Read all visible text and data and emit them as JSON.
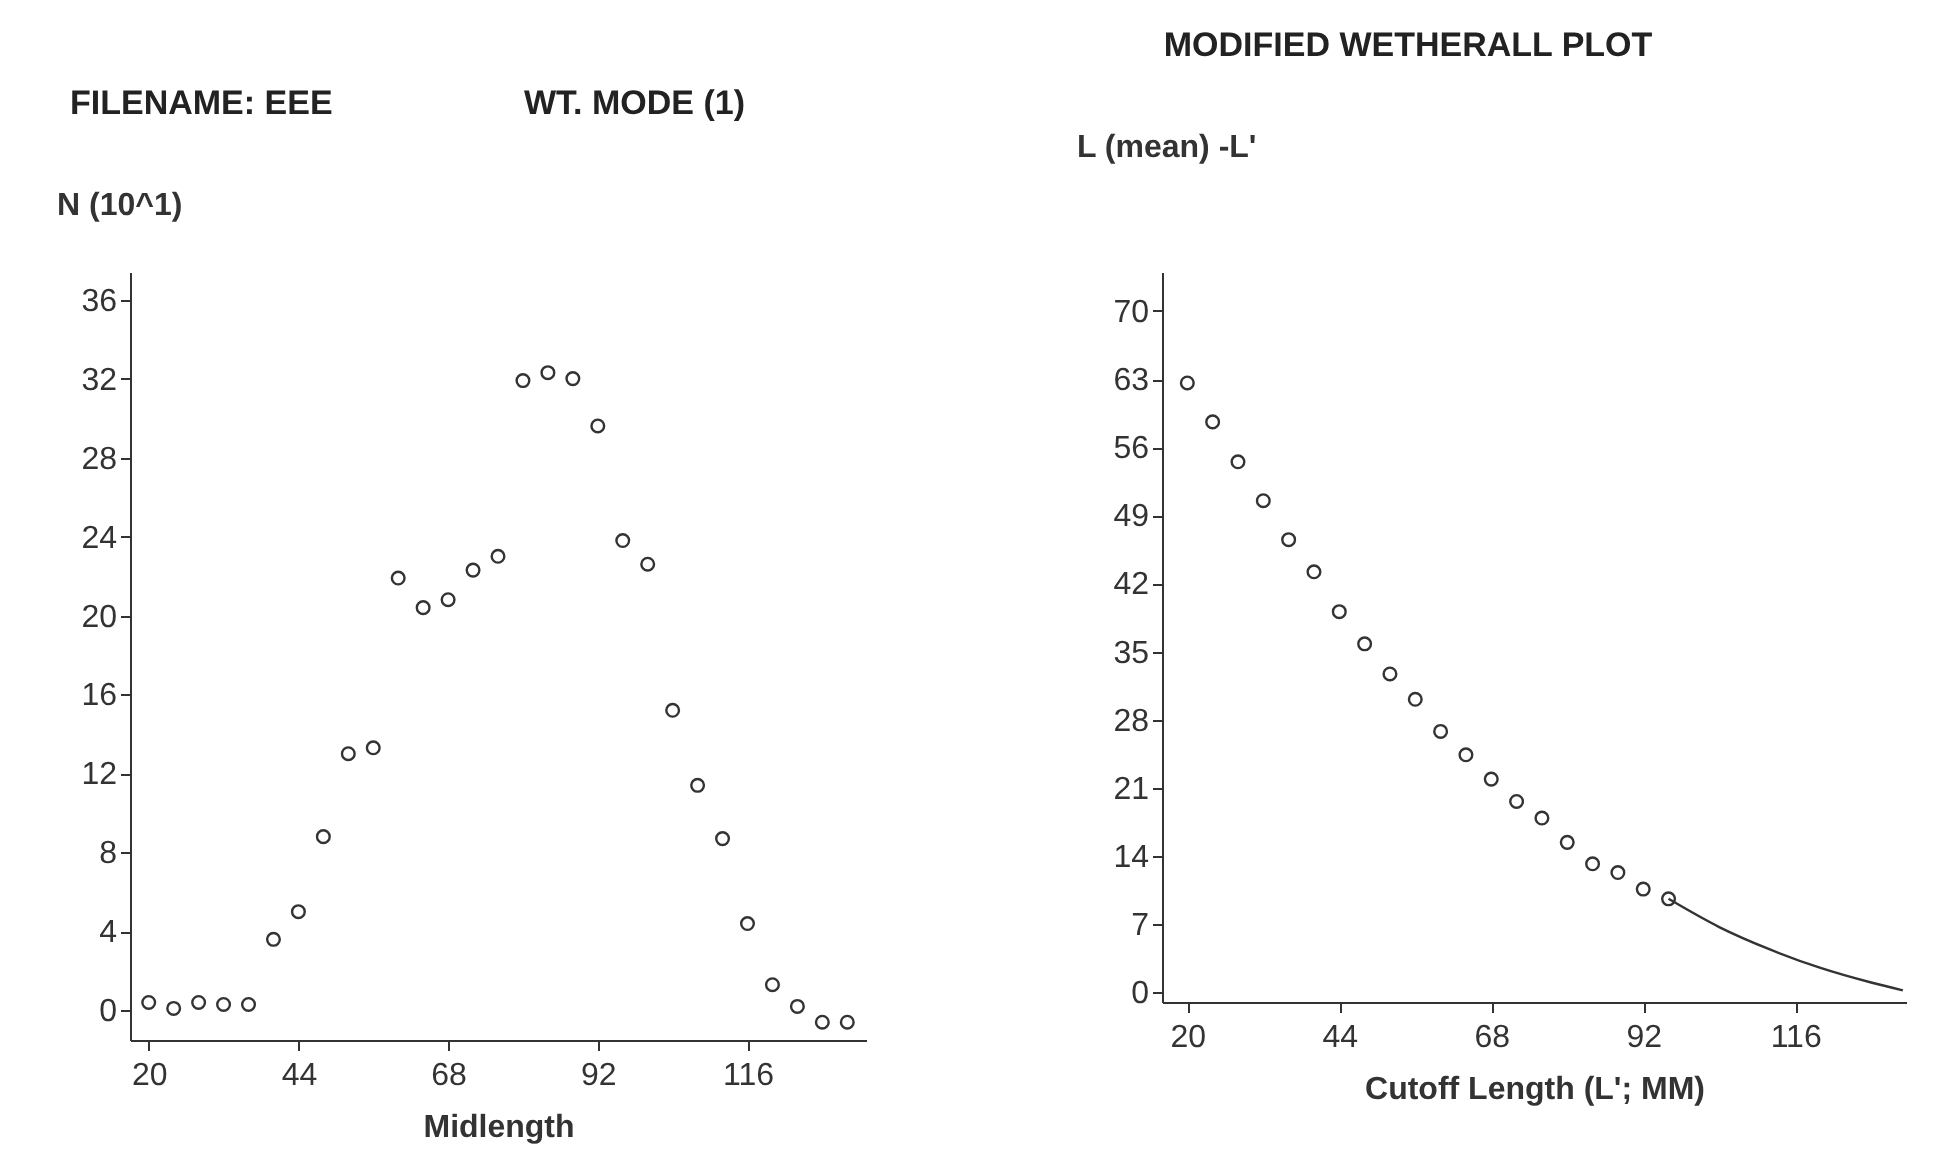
{
  "chart_data": [
    {
      "type": "scatter",
      "title": "FILENAME: EEE",
      "subtitle": "WT. MODE (1)",
      "xlabel": "Midlength",
      "ylabel": "N (10^1)",
      "xlim": [
        17,
        135
      ],
      "ylim": [
        -1.5,
        37.4
      ],
      "xticks": [
        20,
        44,
        68,
        92,
        116
      ],
      "yticks": [
        0,
        4,
        8,
        12,
        16,
        20,
        24,
        28,
        32,
        36
      ],
      "grid": false,
      "marker": "circle",
      "x": [
        20,
        24,
        28,
        32,
        36,
        40,
        44,
        48,
        52,
        56,
        60,
        64,
        68,
        72,
        76,
        80,
        84,
        88,
        92,
        96,
        100,
        104,
        108,
        112,
        116,
        120,
        124,
        128,
        132
      ],
      "series": [
        {
          "color": "#333333",
          "values": [
            0.4,
            0.1,
            0.4,
            0.3,
            0.3,
            3.6,
            5.0,
            8.8,
            13.0,
            13.3,
            21.9,
            20.4,
            20.8,
            22.3,
            23.0,
            31.9,
            32.3,
            32.0,
            29.6,
            23.8,
            22.6,
            15.2,
            11.4,
            8.7,
            4.4,
            1.3,
            0.2,
            -0.6,
            -0.6
          ]
        }
      ]
    },
    {
      "type": "scatter",
      "title": "MODIFIED WETHERALL PLOT",
      "xlabel": "Cutoff Length (L'; MM)",
      "ylabel": "L (mean) -L'",
      "xlim": [
        16,
        133.5
      ],
      "ylim": [
        -1,
        74
      ],
      "xticks": [
        20,
        44,
        68,
        92,
        116
      ],
      "yticks": [
        0,
        7,
        14,
        21,
        28,
        35,
        42,
        49,
        56,
        63,
        70
      ],
      "grid": false,
      "marker": "circle",
      "series": [
        {
          "color": "#333333",
          "x": [
            20,
            24,
            28,
            32,
            36,
            40,
            44,
            48,
            52,
            56,
            60,
            64,
            68,
            72,
            76,
            80,
            84,
            88,
            92,
            96
          ],
          "values": [
            62.6,
            58.6,
            54.5,
            50.5,
            46.5,
            43.2,
            39.1,
            35.8,
            32.7,
            30.1,
            26.8,
            24.4,
            21.9,
            19.6,
            17.9,
            15.4,
            13.2,
            12.3,
            10.6,
            9.6
          ]
        },
        {
          "type": "line",
          "color": "#333333",
          "line_style": "solid",
          "marker": "none",
          "x": [
            96,
            104,
            112,
            120,
            128,
            133
          ],
          "values": [
            9.6,
            6.7,
            4.4,
            2.5,
            1.0,
            0.2
          ]
        }
      ]
    }
  ]
}
